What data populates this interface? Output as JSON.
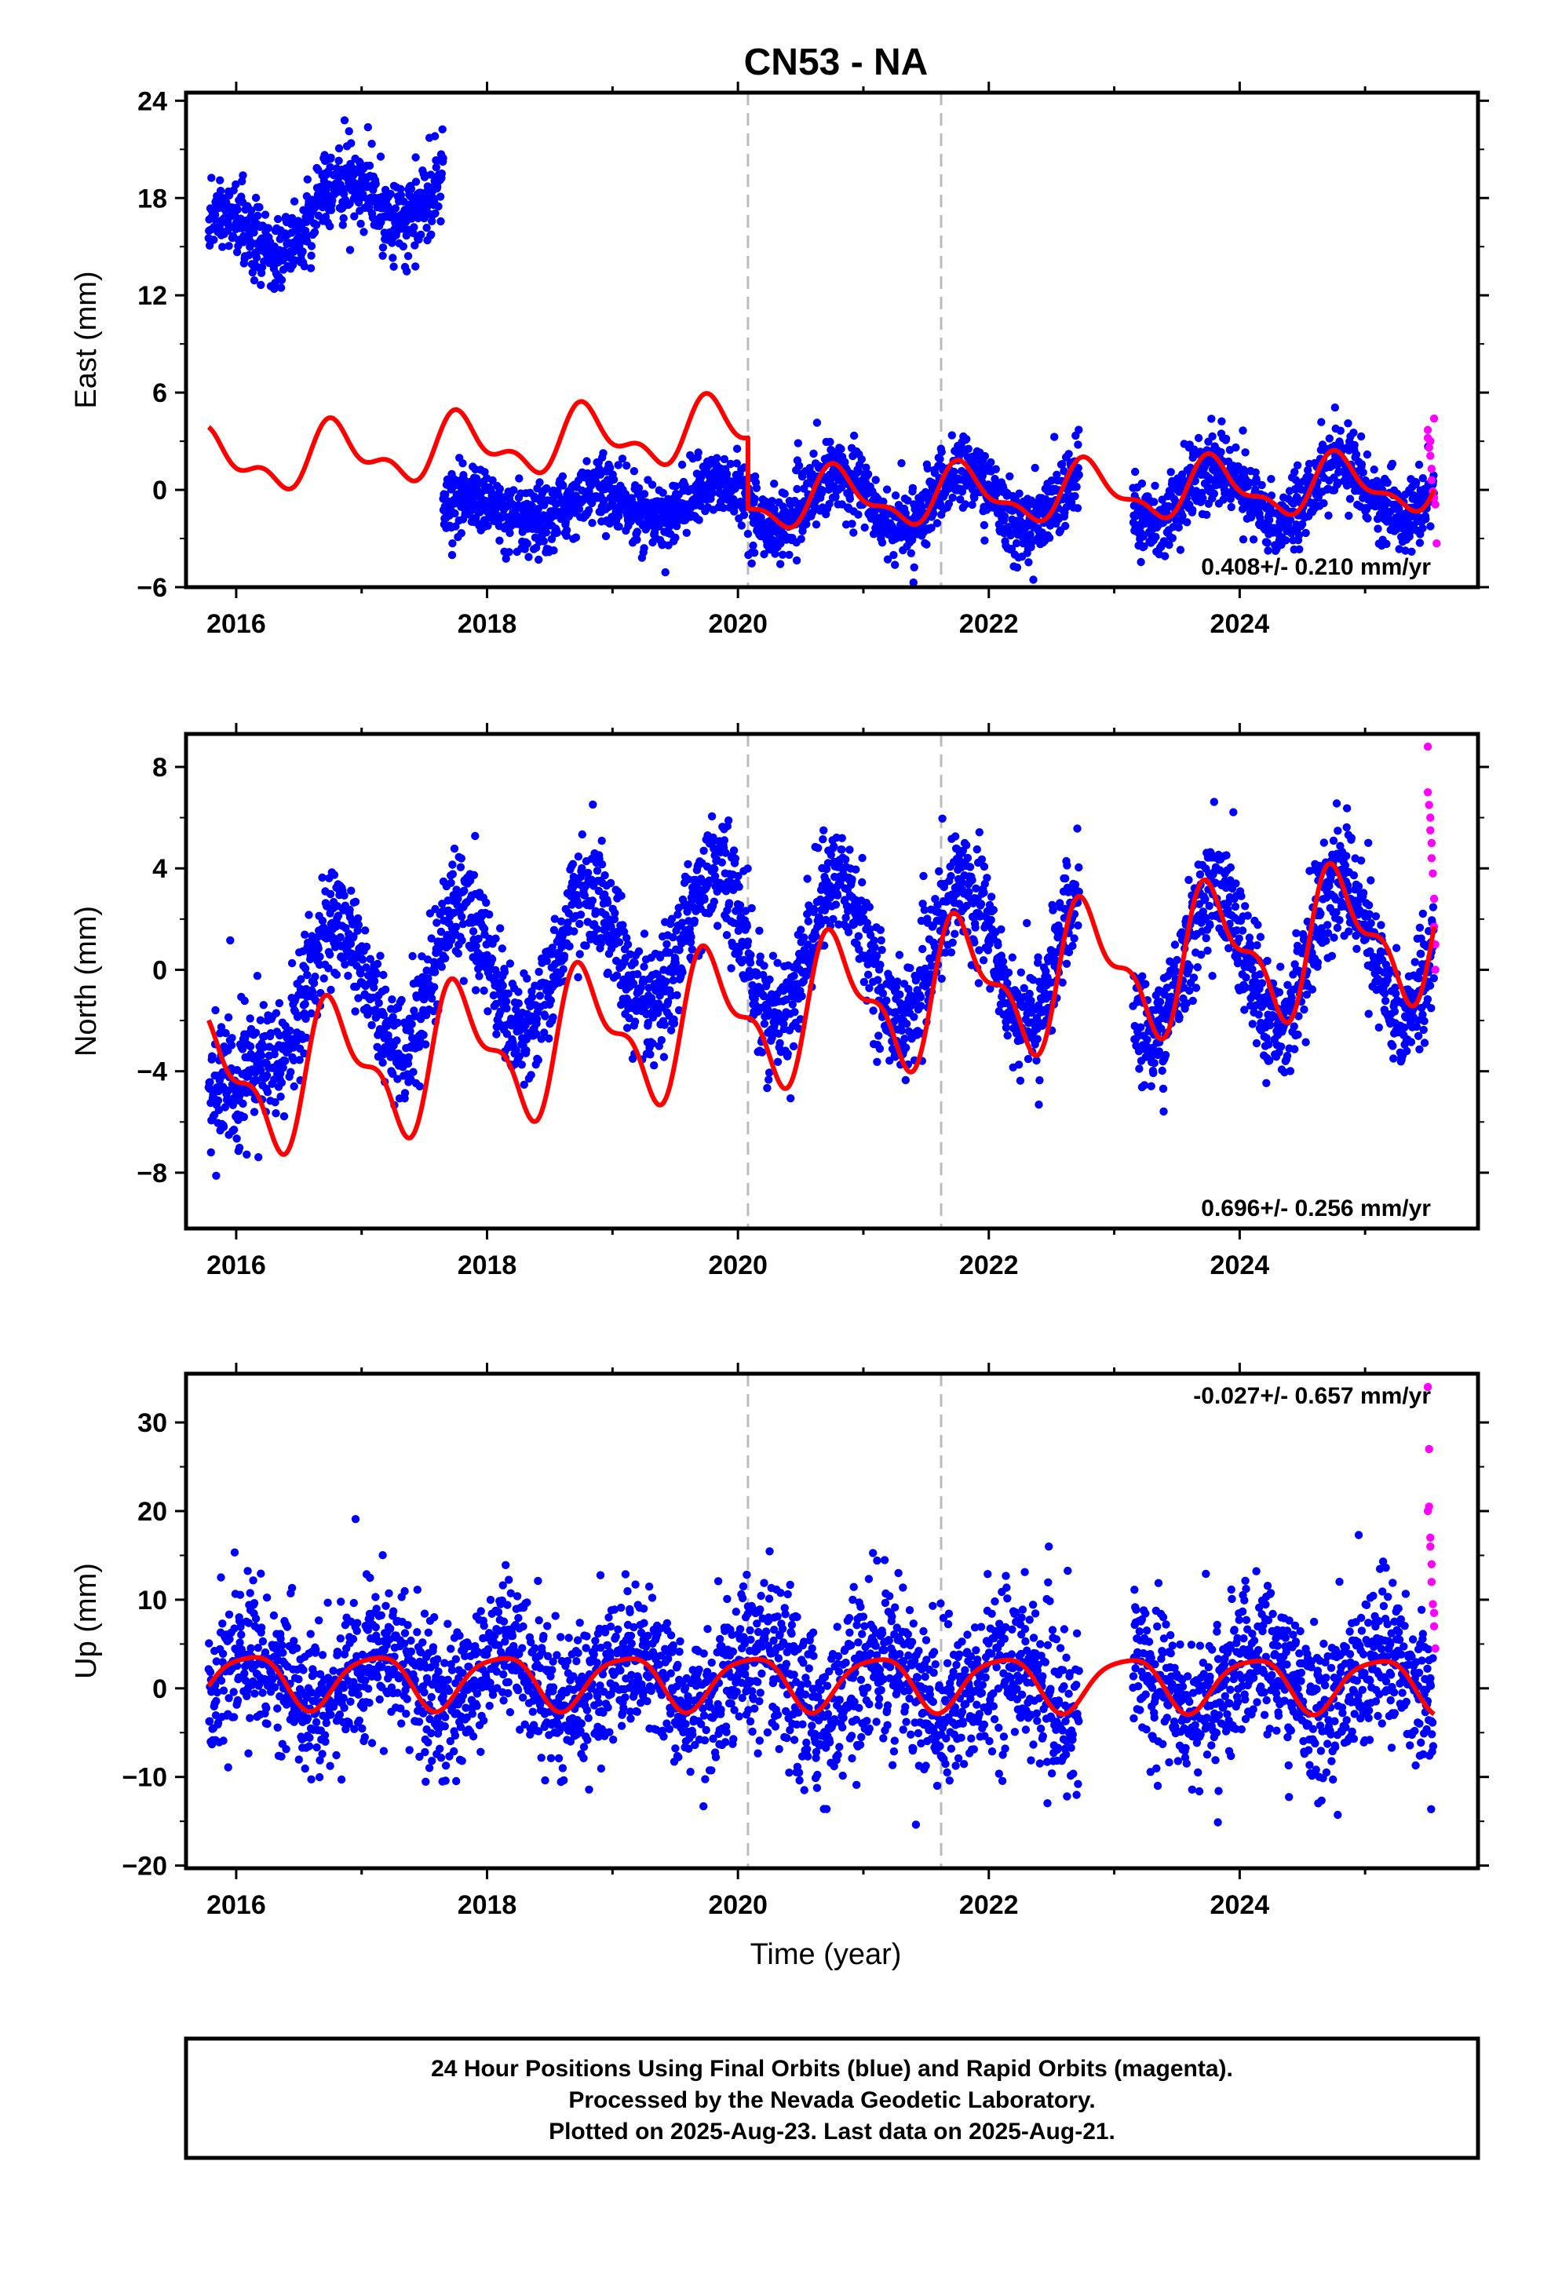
{
  "title": "CN53 - NA",
  "colors": {
    "final_orbits": "#0000ff",
    "rapid_orbits": "#ff00ff",
    "model": "#ff0000",
    "event_lines": "#bbbbbb",
    "frame": "#000000"
  },
  "footer": {
    "line1": "24 Hour Positions Using Final Orbits (blue) and Rapid Orbits (magenta).",
    "line2": "Processed by the Nevada Geodetic Laboratory.",
    "line3": "Plotted on 2025-Aug-23. Last data on 2025-Aug-21."
  },
  "chart_data": [
    {
      "type": "scatter",
      "component": "east",
      "ylabel": "East (mm)",
      "xlabel": "",
      "xlim": [
        2015.6,
        2025.9
      ],
      "ylim": [
        -6,
        24.5
      ],
      "yticks": [
        -6,
        0,
        6,
        12,
        18,
        24
      ],
      "xticks": [
        2016,
        2018,
        2020,
        2022,
        2024
      ],
      "grid": false,
      "rate": "0.408+/- 0.210 mm/yr",
      "rate_position": "bottom-right",
      "event_lines": [
        2020.08,
        2021.62
      ],
      "segments": [
        {
          "start": 2015.78,
          "end": 2017.65,
          "offset": 15.2,
          "trend": 2.05,
          "amp": 1.8,
          "phase": 0.6,
          "spread": 1.2
        },
        {
          "start": 2017.65,
          "end": 2020.08,
          "offset": -1.6,
          "trend": 0.45,
          "amp": 1.0,
          "phase": 0.6,
          "spread": 1.0
        },
        {
          "start": 2020.08,
          "end": 2022.72,
          "offset": -0.6,
          "trend": 0.0,
          "amp": 1.7,
          "phase": 0.55,
          "spread": 1.1
        },
        {
          "start": 2023.15,
          "end": 2025.55,
          "offset": -0.4,
          "trend": 0.2,
          "amp": 1.7,
          "phase": 0.55,
          "spread": 1.1
        }
      ],
      "rapid": [
        [
          2025.5,
          3.7
        ],
        [
          2025.5,
          3.2
        ],
        [
          2025.51,
          2.6
        ],
        [
          2025.52,
          2.1
        ],
        [
          2025.53,
          1.3
        ],
        [
          2025.53,
          0.6
        ],
        [
          2025.54,
          -0.1
        ],
        [
          2025.55,
          -0.5
        ],
        [
          2025.56,
          -0.9
        ],
        [
          2025.57,
          -3.3
        ],
        [
          2025.55,
          4.4
        ],
        [
          2025.52,
          3.0
        ]
      ],
      "model": {
        "breaks": [
          2020.08
        ],
        "before": {
          "offset": 3.7,
          "trend": 0.5,
          "annual": [
            1.6,
            0.55
          ],
          "semiannual": [
            0.9,
            0.1
          ]
        },
        "after": {
          "offset": -0.7,
          "trend": 0.2,
          "annual": [
            1.6,
            0.55
          ],
          "semiannual": [
            0.7,
            0.1
          ]
        }
      }
    },
    {
      "type": "scatter",
      "component": "north",
      "ylabel": "North (mm)",
      "xlabel": "",
      "xlim": [
        2015.6,
        2025.9
      ],
      "ylim": [
        -10.2,
        9.3
      ],
      "yticks": [
        -8,
        -4,
        0,
        4,
        8
      ],
      "xticks": [
        2016,
        2018,
        2020,
        2022,
        2024
      ],
      "grid": false,
      "rate": "0.696+/- 0.256 mm/yr",
      "rate_position": "bottom-right",
      "event_lines": [
        2020.08,
        2021.62
      ],
      "segments": [
        {
          "start": 2015.78,
          "end": 2016.3,
          "offset": -5.5,
          "trend": 5.0,
          "amp": 0.4,
          "phase": 0.55,
          "spread": 1.3
        },
        {
          "start": 2016.3,
          "end": 2020.08,
          "offset": -1.2,
          "trend": 0.7,
          "amp": 2.7,
          "phase": 0.55,
          "spread": 1.1
        },
        {
          "start": 2020.08,
          "end": 2022.72,
          "offset": 0.7,
          "trend": 0.0,
          "amp": 2.8,
          "phase": 0.55,
          "spread": 1.1
        },
        {
          "start": 2023.15,
          "end": 2025.55,
          "offset": 0.0,
          "trend": 0.5,
          "amp": 2.8,
          "phase": 0.55,
          "spread": 1.1
        }
      ],
      "rapid": [
        [
          2025.5,
          8.8
        ],
        [
          2025.5,
          7.0
        ],
        [
          2025.51,
          6.5
        ],
        [
          2025.52,
          6.0
        ],
        [
          2025.52,
          5.5
        ],
        [
          2025.53,
          5.0
        ],
        [
          2025.53,
          4.4
        ],
        [
          2025.54,
          3.8
        ],
        [
          2025.55,
          2.8
        ],
        [
          2025.55,
          1.7
        ],
        [
          2025.56,
          1.0
        ],
        [
          2025.56,
          0.0
        ]
      ],
      "model": {
        "breaks": [],
        "before": {
          "offset": -1.9,
          "trend": 0.65,
          "annual": [
            2.4,
            0.55
          ],
          "semiannual": [
            1.1,
            0.05
          ]
        },
        "after": {
          "offset": -1.9,
          "trend": 0.65,
          "annual": [
            2.4,
            0.55
          ],
          "semiannual": [
            1.1,
            0.05
          ]
        }
      }
    },
    {
      "type": "scatter",
      "component": "up",
      "ylabel": "Up (mm)",
      "xlabel": "Time (year)",
      "xlim": [
        2015.6,
        2025.9
      ],
      "ylim": [
        -20.3,
        35.5
      ],
      "yticks": [
        -20,
        -10,
        0,
        10,
        20,
        30
      ],
      "xticks": [
        2016,
        2018,
        2020,
        2022,
        2024
      ],
      "grid": false,
      "rate": "-0.027+/- 0.657 mm/yr",
      "rate_position": "top-right",
      "event_lines": [
        2020.08,
        2021.62
      ],
      "segments": [
        {
          "start": 2015.78,
          "end": 2020.08,
          "offset": 1.0,
          "trend": 0.0,
          "amp": 3.0,
          "phase": 0.9,
          "spread": 4.0
        },
        {
          "start": 2020.08,
          "end": 2022.72,
          "offset": 0.2,
          "trend": 0.0,
          "amp": 3.0,
          "phase": 0.9,
          "spread": 4.5
        },
        {
          "start": 2023.15,
          "end": 2025.55,
          "offset": 0.5,
          "trend": 0.0,
          "amp": 3.0,
          "phase": 0.9,
          "spread": 4.2
        }
      ],
      "rapid": [
        [
          2025.5,
          34.0
        ],
        [
          2025.51,
          27.0
        ],
        [
          2025.51,
          20.5
        ],
        [
          2025.52,
          17.0
        ],
        [
          2025.52,
          16.0
        ],
        [
          2025.53,
          14.0
        ],
        [
          2025.53,
          12.0
        ],
        [
          2025.54,
          9.5
        ],
        [
          2025.55,
          8.5
        ],
        [
          2025.55,
          7.0
        ],
        [
          2025.56,
          4.5
        ],
        [
          2025.5,
          20.0
        ]
      ],
      "model": {
        "breaks": [],
        "before": {
          "offset": 0.8,
          "trend": -0.05,
          "annual": [
            3.0,
            0.85
          ],
          "semiannual": [
            0.6,
            0.2
          ]
        },
        "after": {
          "offset": 0.8,
          "trend": -0.05,
          "annual": [
            3.0,
            0.85
          ],
          "semiannual": [
            0.6,
            0.2
          ]
        }
      }
    }
  ]
}
